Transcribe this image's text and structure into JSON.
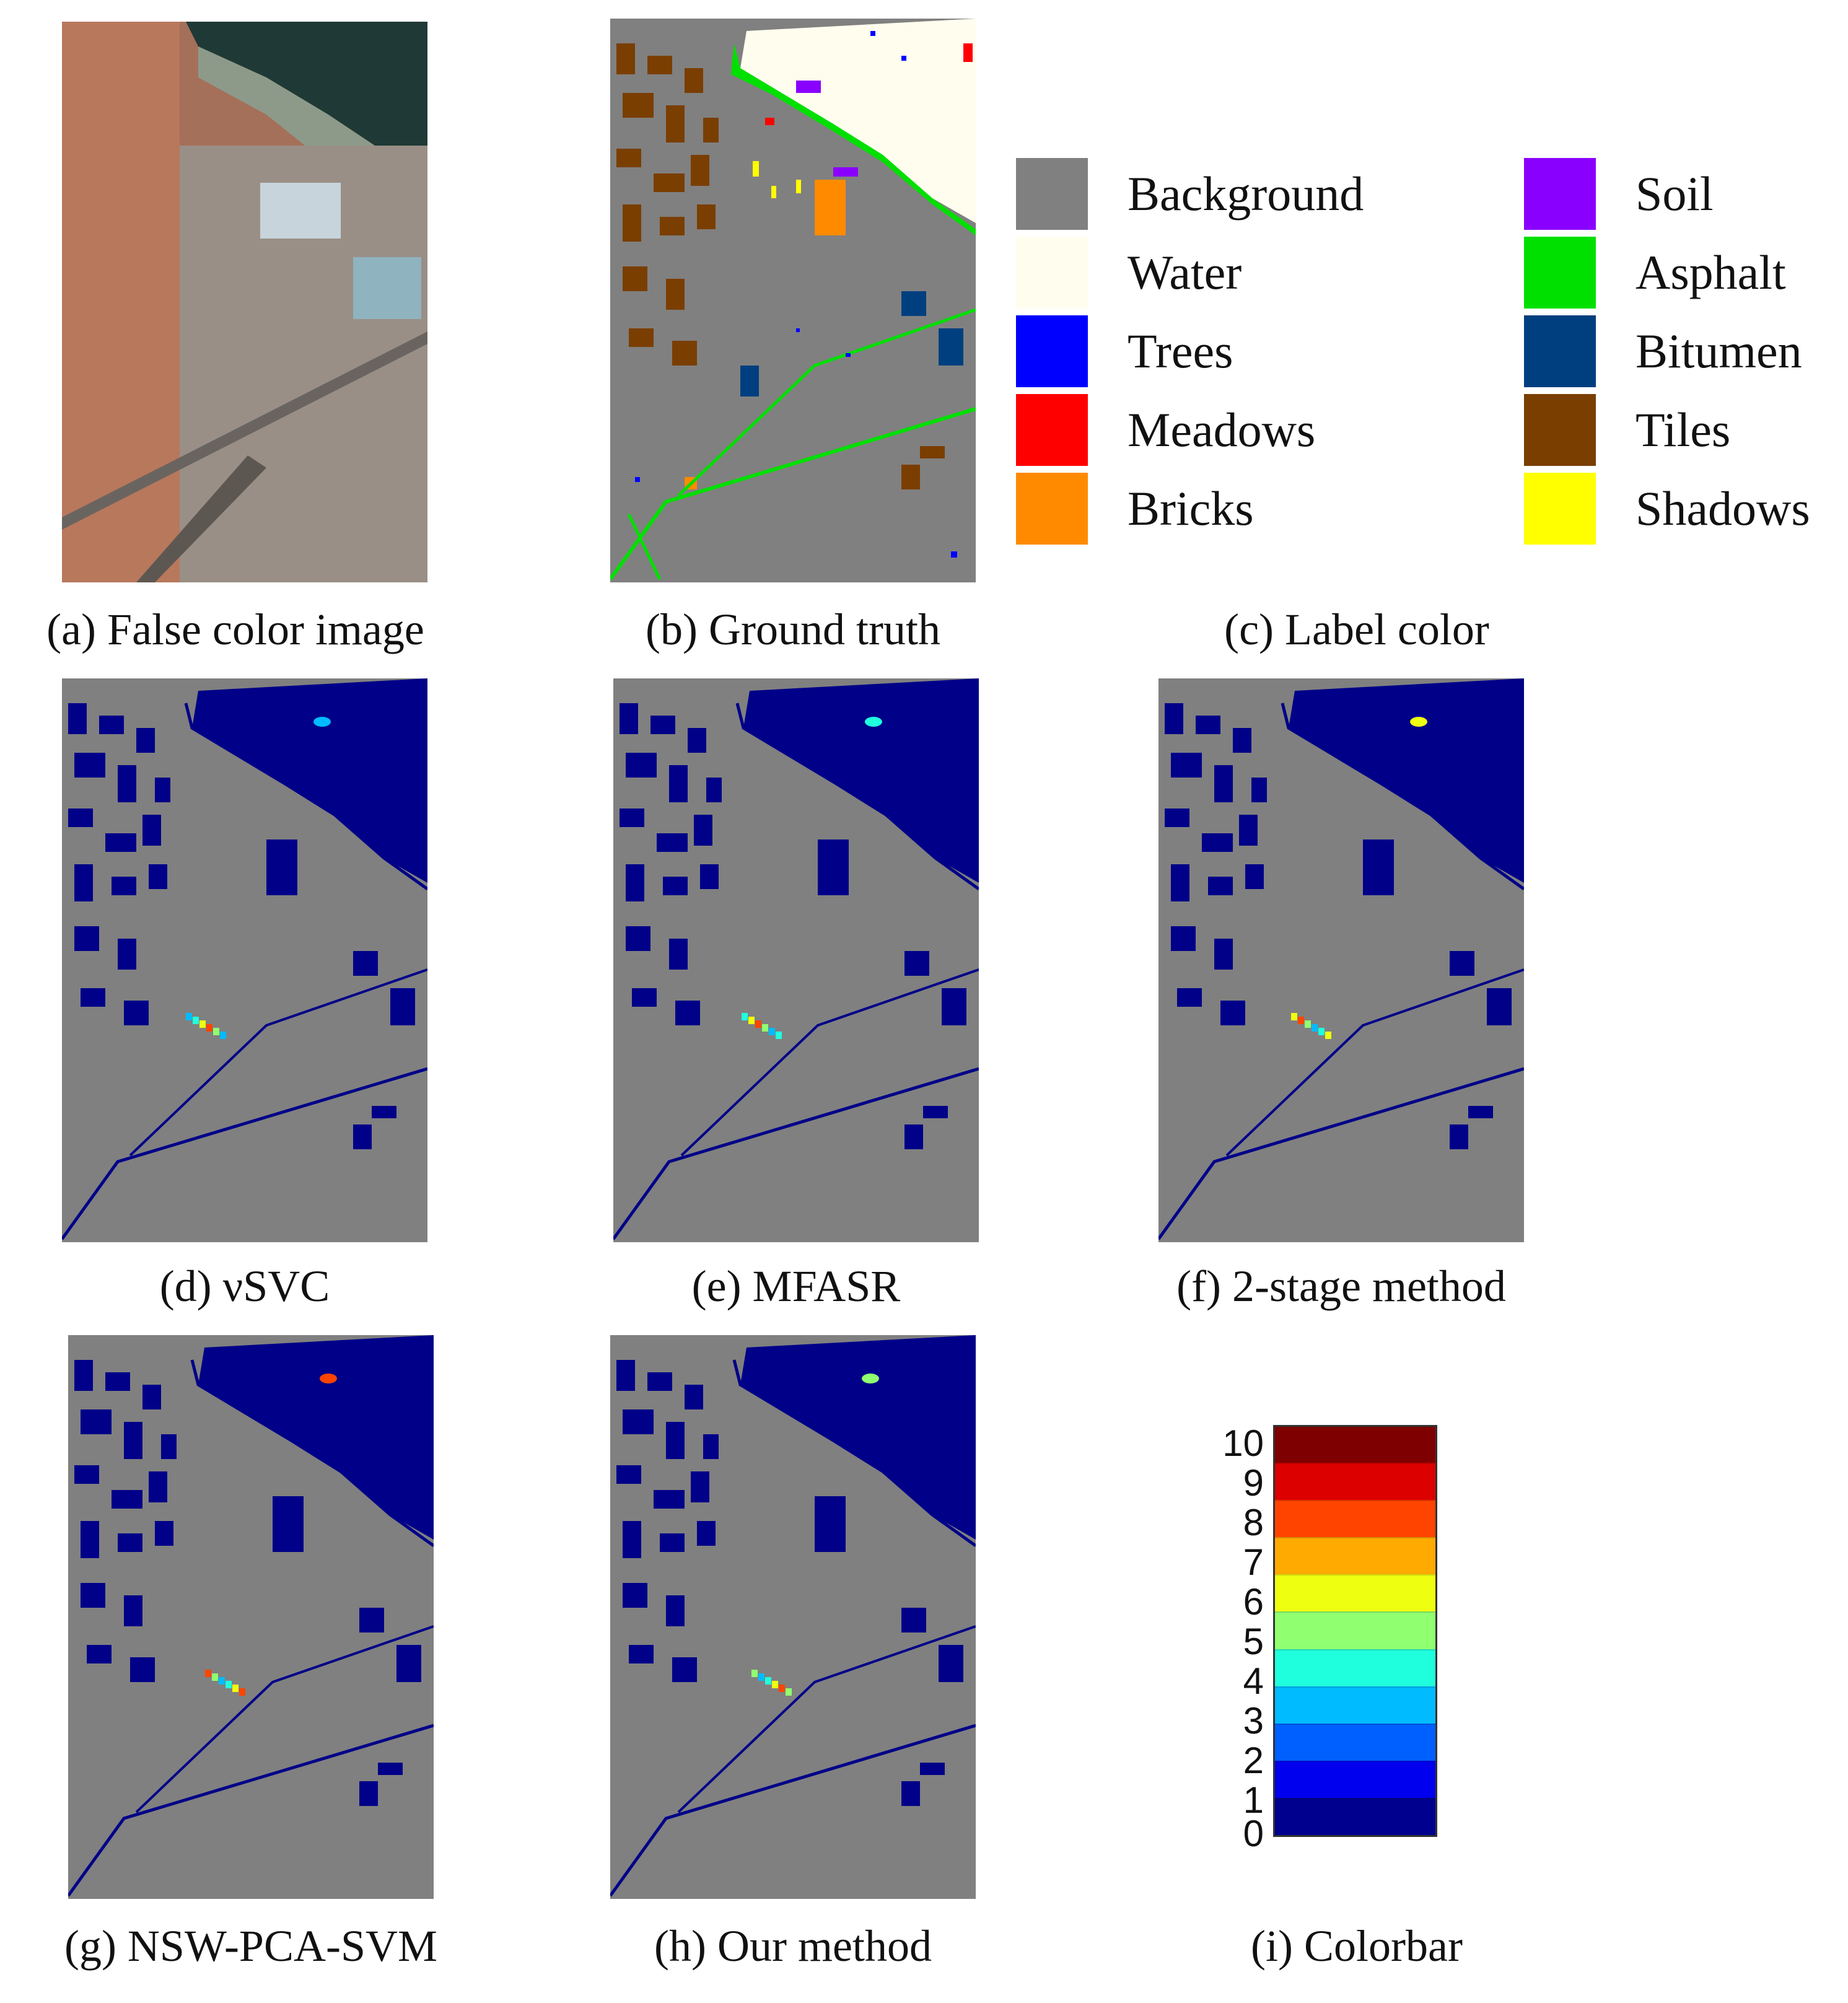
{
  "captions": {
    "a": "(a) False color image",
    "b": "(b) Ground truth",
    "c": "(c) Label color",
    "d": "(d) νSVC",
    "e": "(e) MFASR",
    "f": "(f) 2-stage method",
    "g": "(g) NSW-PCA-SVM",
    "h": "(h) Our method",
    "i": "(i) Colorbar"
  },
  "legend": {
    "items": [
      {
        "label": "Background",
        "color": "#808080"
      },
      {
        "label": "Water",
        "color": "#FFFDEE"
      },
      {
        "label": "Trees",
        "color": "#0000FF"
      },
      {
        "label": "Meadows",
        "color": "#FF0000"
      },
      {
        "label": "Bricks",
        "color": "#FF8A00"
      },
      {
        "label": "Soil",
        "color": "#8A00FF"
      },
      {
        "label": "Asphalt",
        "color": "#00E000"
      },
      {
        "label": "Bitumen",
        "color": "#003F7F"
      },
      {
        "label": "Tiles",
        "color": "#7A3E00"
      },
      {
        "label": "Shadows",
        "color": "#FFFF00"
      }
    ]
  },
  "colorbar": {
    "ticks": [
      "10",
      "9",
      "8",
      "7",
      "6",
      "5",
      "4",
      "3",
      "2",
      "1",
      "0"
    ],
    "colors": [
      "#7F0000",
      "#DD0000",
      "#FF4400",
      "#FFAA00",
      "#EEFF10",
      "#90FF70",
      "#20FFDD",
      "#00BBFF",
      "#0060FF",
      "#0000EE",
      "#00008F"
    ]
  },
  "colors": {
    "map_gray": "#808080",
    "dark_blue": "#000088"
  }
}
